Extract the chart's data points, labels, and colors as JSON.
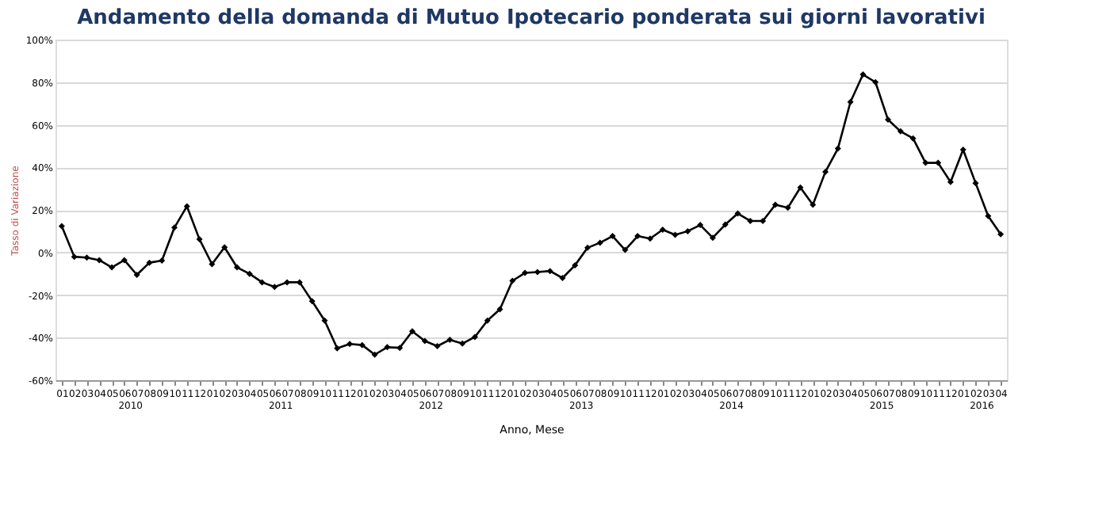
{
  "chart_data": {
    "type": "line",
    "title": "Andamento della domanda di Mutuo Ipotecario ponderata sui giorni lavorativi",
    "xlabel": "Anno, Mese",
    "ylabel": "Tasso di Variazione",
    "categories": [
      "01",
      "02",
      "03",
      "04",
      "05",
      "06",
      "07",
      "08",
      "09",
      "10",
      "11",
      "12",
      "01",
      "02",
      "03",
      "04",
      "05",
      "06",
      "07",
      "08",
      "09",
      "10",
      "11",
      "12",
      "01",
      "02",
      "03",
      "04",
      "05",
      "06",
      "07",
      "08",
      "09",
      "10",
      "11",
      "12",
      "01",
      "02",
      "03",
      "04",
      "05",
      "06",
      "07",
      "08",
      "09",
      "10",
      "11",
      "12",
      "01",
      "02",
      "03",
      "04",
      "05",
      "06",
      "07",
      "08",
      "09",
      "10",
      "11",
      "12",
      "01",
      "02",
      "03",
      "04",
      "05",
      "06",
      "07",
      "08",
      "09",
      "10",
      "11",
      "12",
      "01",
      "02",
      "03",
      "04"
    ],
    "series": [
      {
        "color": "#000000",
        "values": [
          12.4,
          -2,
          -2.4,
          -3.6,
          -7,
          -3.6,
          -10.5,
          -4.8,
          -3.8,
          11.7,
          21.7,
          6.2,
          -5.5,
          2.4,
          -7,
          -10,
          -14,
          -16.2,
          -14,
          -14,
          -22.9,
          -32,
          -45,
          -43,
          -43.5,
          -48,
          -44.5,
          -44.8,
          -37,
          -41.6,
          -44,
          -41,
          -42.8,
          -39.7,
          -32,
          -26.7,
          -13.3,
          -9.6,
          -9.2,
          -8.7,
          -12,
          -6,
          2.2,
          4.6,
          7.7,
          1.2,
          7.7,
          6.5,
          10.7,
          8.3,
          10,
          12.9,
          6.9,
          13.1,
          18.3,
          14.8,
          14.8,
          22.4,
          21,
          30.5,
          22.4,
          37.9,
          48.8,
          70.7,
          83.6,
          80,
          62.4,
          56.9,
          53.6,
          42.1,
          42.1,
          33.1,
          48.3,
          32.6,
          17.1,
          8.6
        ]
      }
    ],
    "annotations": [
      "2010",
      "2011",
      "2012",
      "2013",
      "2014",
      "2015",
      "2016"
    ],
    "ylim": [
      -60,
      100
    ],
    "yticks": [
      {
        "value": -60,
        "label": "-60%"
      },
      {
        "value": -40,
        "label": "-40%"
      },
      {
        "value": -20,
        "label": "-20%"
      },
      {
        "value": 0,
        "label": "0%"
      },
      {
        "value": 20,
        "label": "20%"
      },
      {
        "value": 40,
        "label": "40%"
      },
      {
        "value": 60,
        "label": "60%"
      },
      {
        "value": 80,
        "label": "80%"
      },
      {
        "value": 100,
        "label": "100%"
      }
    ],
    "grid": "y",
    "marker": "diamond",
    "line_style": "solid"
  }
}
